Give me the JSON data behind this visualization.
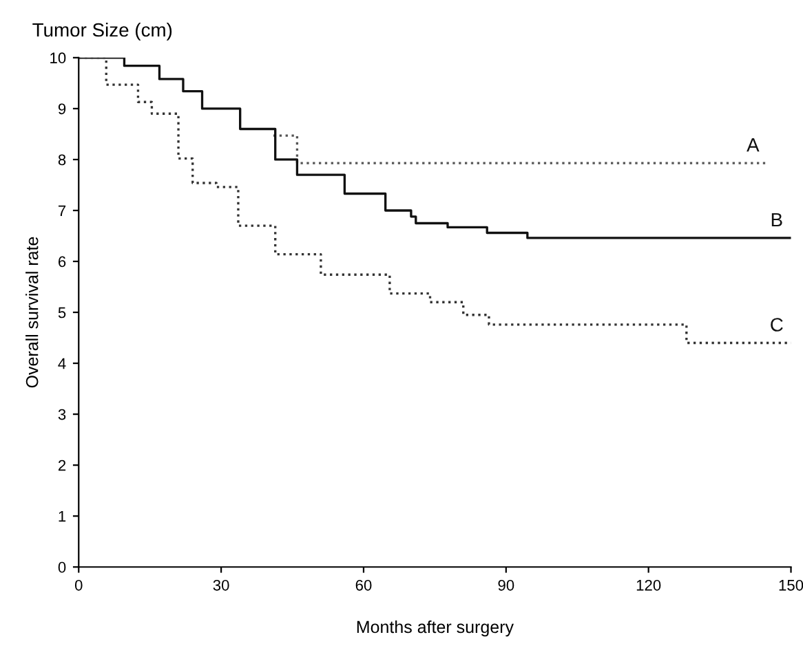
{
  "chart_data": {
    "type": "step",
    "title": "Tumor Size (cm)",
    "xlabel": "Months after surgery",
    "ylabel": "Overall survival rate",
    "xlim": [
      0,
      150
    ],
    "ylim": [
      0,
      10
    ],
    "xticks": [
      0,
      30,
      60,
      90,
      120,
      150
    ],
    "yticks": [
      0,
      1,
      2,
      3,
      4,
      5,
      6,
      7,
      8,
      9,
      10
    ],
    "grid": false,
    "legend": false,
    "marker": "none",
    "series": [
      {
        "name": "A",
        "color": "#555555",
        "line_style": "dotted",
        "x": [
          41,
          46,
          145
        ],
        "values": [
          8.47,
          7.93,
          7.93
        ]
      },
      {
        "name": "B",
        "color": "#111111",
        "line_style": "solid",
        "x": [
          0,
          9.6,
          17,
          22,
          26,
          34,
          41.4,
          46,
          56,
          64.6,
          70,
          71,
          77.7,
          86,
          94.5,
          150
        ],
        "values": [
          10,
          9.84,
          9.58,
          9.34,
          9.0,
          8.6,
          8.0,
          7.7,
          7.33,
          7.0,
          6.88,
          6.75,
          6.67,
          6.56,
          6.46,
          6.46
        ]
      },
      {
        "name": "C",
        "color": "#333333",
        "line_style": "dotted",
        "x": [
          0,
          5.8,
          12.5,
          15.4,
          21,
          24,
          29,
          33.6,
          41.4,
          51,
          65.5,
          74,
          81,
          86.4,
          128,
          150
        ],
        "values": [
          10,
          9.47,
          9.13,
          8.9,
          8.02,
          7.54,
          7.46,
          6.7,
          6.14,
          5.74,
          5.37,
          5.2,
          4.95,
          4.76,
          4.4,
          4.4
        ]
      }
    ]
  }
}
